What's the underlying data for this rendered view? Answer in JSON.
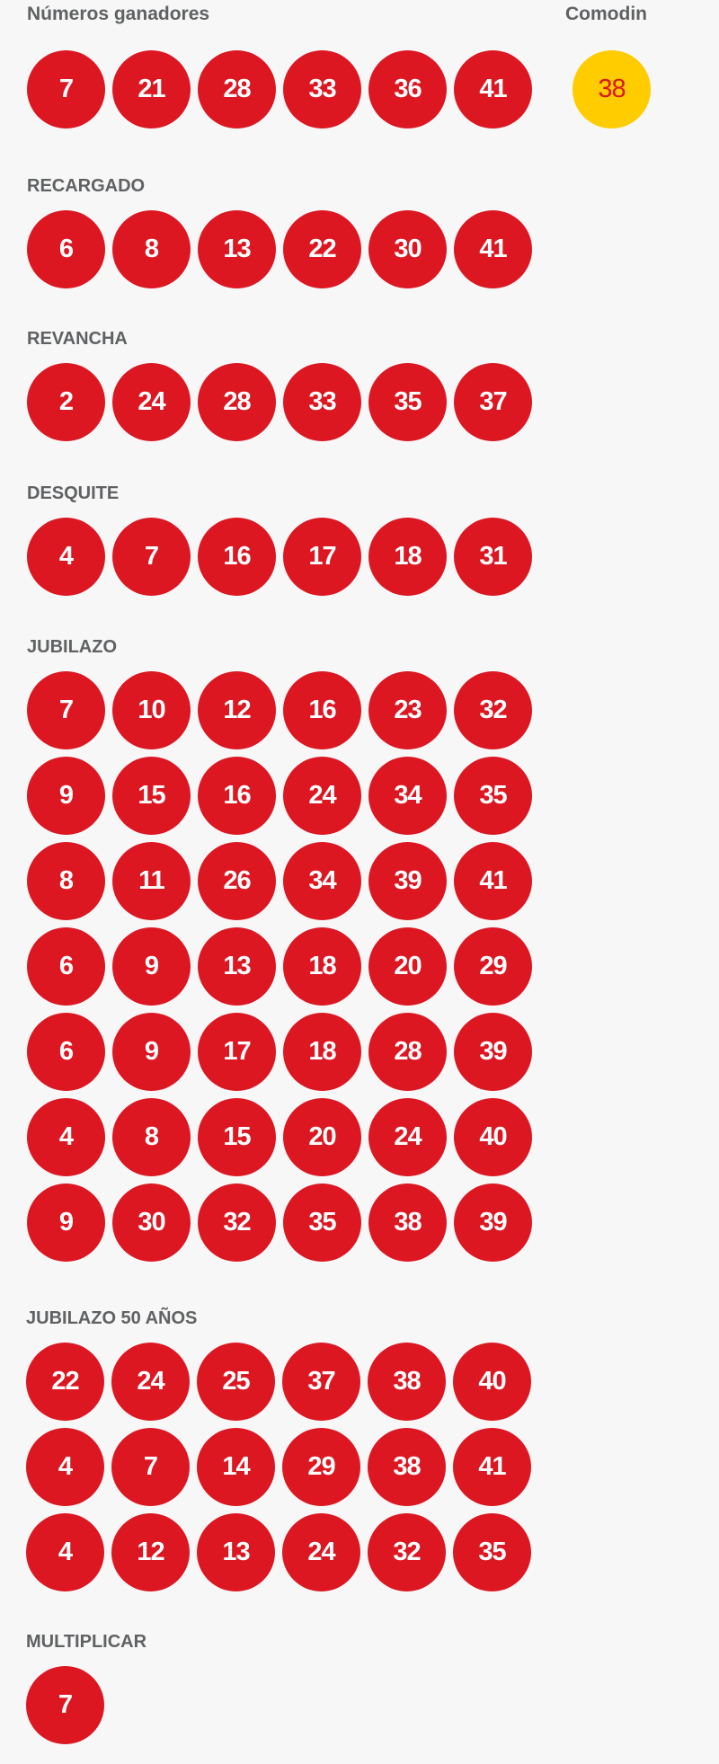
{
  "colors": {
    "ball": "#dc1722",
    "ball_text": "#ffffff",
    "comodin_ball": "#ffcc00",
    "comodin_text": "#dc1722",
    "label": "#5f6163",
    "background": "#f7f7f7"
  },
  "sections": [
    {
      "label": "Números ganadores",
      "rows": [
        [
          7,
          21,
          28,
          33,
          36,
          41
        ]
      ]
    },
    {
      "label": "RECARGADO",
      "rows": [
        [
          6,
          8,
          13,
          22,
          30,
          41
        ]
      ]
    },
    {
      "label": "REVANCHA",
      "rows": [
        [
          2,
          24,
          28,
          33,
          35,
          37
        ]
      ]
    },
    {
      "label": "DESQUITE",
      "rows": [
        [
          4,
          7,
          16,
          17,
          18,
          31
        ]
      ]
    },
    {
      "label": "JUBILAZO",
      "rows": [
        [
          7,
          10,
          12,
          16,
          23,
          32
        ],
        [
          9,
          15,
          16,
          24,
          34,
          35
        ],
        [
          8,
          11,
          26,
          34,
          39,
          41
        ],
        [
          6,
          9,
          13,
          18,
          20,
          29
        ],
        [
          6,
          9,
          17,
          18,
          28,
          39
        ],
        [
          4,
          8,
          15,
          20,
          24,
          40
        ],
        [
          9,
          30,
          32,
          35,
          38,
          39
        ]
      ]
    },
    {
      "label": "JUBILAZO 50 AÑOS",
      "rows": [
        [
          22,
          24,
          25,
          37,
          38,
          40
        ],
        [
          4,
          7,
          14,
          29,
          38,
          41
        ],
        [
          4,
          12,
          13,
          24,
          32,
          35
        ]
      ]
    },
    {
      "label": "MULTIPLICAR",
      "rows": [
        [
          7
        ]
      ]
    }
  ],
  "comodin": {
    "label": "Comodin",
    "value": 38
  }
}
